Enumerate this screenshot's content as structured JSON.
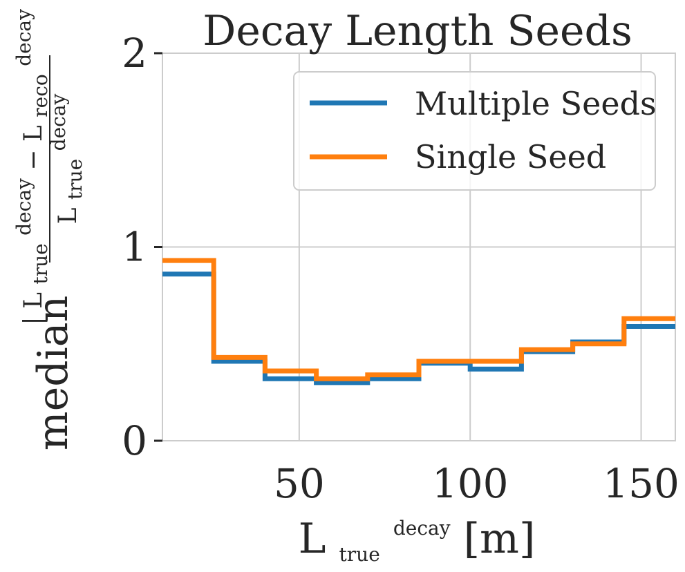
{
  "chart_data": {
    "type": "line",
    "drawstyle": "steps-post",
    "title": "Decay Length Seeds",
    "xlabel": {
      "base": "L",
      "sup": "decay",
      "sub": "true",
      "unit": "[m]"
    },
    "ylabel": {
      "prefix": "median",
      "numerator_left": "L",
      "numerator_left_sup": "decay",
      "numerator_left_sub": "true",
      "minus": "−",
      "numerator_right": "L",
      "numerator_right_sup": "decay",
      "numerator_right_sub": "reco",
      "denominator": "L",
      "denominator_sup": "decay",
      "denominator_sub": "true"
    },
    "xlim": [
      10,
      160
    ],
    "ylim": [
      0,
      2
    ],
    "xticks": [
      50,
      100,
      150
    ],
    "yticks": [
      0,
      1,
      2
    ],
    "grid": true,
    "legend_position": "top-right",
    "bin_edges": [
      10,
      25,
      40,
      55,
      70,
      85,
      100,
      115,
      130,
      145,
      160
    ],
    "series": [
      {
        "name": "Multiple Seeds",
        "color": "#1f77b4",
        "values": [
          0.86,
          0.41,
          0.32,
          0.3,
          0.32,
          0.4,
          0.37,
          0.46,
          0.51,
          0.59
        ]
      },
      {
        "name": "Single Seed",
        "color": "#ff7f0e",
        "values": [
          0.93,
          0.43,
          0.36,
          0.32,
          0.34,
          0.41,
          0.41,
          0.47,
          0.5,
          0.63
        ]
      }
    ]
  }
}
